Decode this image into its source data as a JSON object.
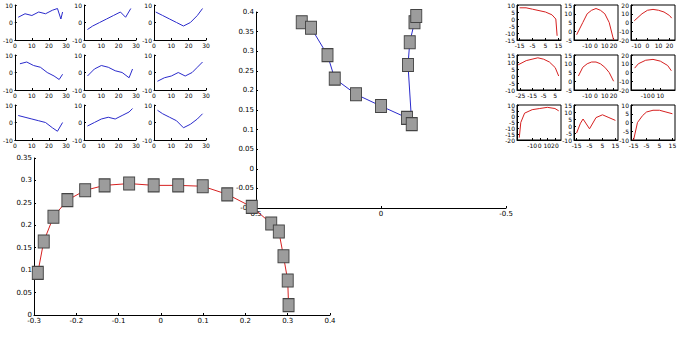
{
  "chart_data": [
    {
      "type": "line",
      "color": "#2b2bcc",
      "x": [
        2,
        6,
        10,
        14,
        18,
        22,
        25,
        27,
        28
      ],
      "values": [
        3,
        5,
        4,
        6,
        5,
        7,
        8,
        2,
        6
      ],
      "xlim": [
        0,
        30
      ],
      "ylim": [
        -10,
        10
      ],
      "xticks": [
        0,
        10,
        20,
        30
      ],
      "yticks": [
        -10,
        0,
        10
      ],
      "grid": false
    },
    {
      "type": "line",
      "color": "#2b2bcc",
      "x": [
        2,
        5,
        9,
        13,
        17,
        21,
        24,
        27
      ],
      "values": [
        -4,
        -2,
        0,
        2,
        4,
        6,
        3,
        8
      ],
      "xlim": [
        0,
        30
      ],
      "ylim": [
        -10,
        10
      ],
      "xticks": [
        0,
        10,
        20,
        30
      ],
      "yticks": [
        -10,
        0,
        10
      ],
      "grid": false
    },
    {
      "type": "line",
      "color": "#2b2bcc",
      "x": [
        1,
        5,
        9,
        13,
        17,
        21,
        25,
        28
      ],
      "values": [
        6,
        4,
        2,
        0,
        -2,
        0,
        4,
        8
      ],
      "xlim": [
        0,
        30
      ],
      "ylim": [
        -10,
        10
      ],
      "xticks": [
        0,
        10,
        20,
        30
      ],
      "yticks": [
        -10,
        0,
        10
      ],
      "grid": false
    },
    {
      "type": "line",
      "color": "#2b2bcc",
      "x": [
        3,
        7,
        11,
        15,
        19,
        23,
        26,
        28
      ],
      "values": [
        5,
        6,
        4,
        3,
        0,
        -2,
        -4,
        -1
      ],
      "xlim": [
        0,
        30
      ],
      "ylim": [
        -10,
        10
      ],
      "xticks": [
        0,
        10,
        20,
        30
      ],
      "yticks": [
        -10,
        0,
        10
      ],
      "grid": false
    },
    {
      "type": "line",
      "color": "#2b2bcc",
      "x": [
        2,
        6,
        10,
        14,
        18,
        22,
        26,
        28
      ],
      "values": [
        -2,
        2,
        4,
        3,
        1,
        0,
        -3,
        2
      ],
      "xlim": [
        0,
        30
      ],
      "ylim": [
        -10,
        10
      ],
      "xticks": [
        0,
        10,
        20,
        30
      ],
      "yticks": [
        -10,
        0,
        10
      ],
      "grid": false
    },
    {
      "type": "line",
      "color": "#2b2bcc",
      "x": [
        2,
        6,
        10,
        14,
        18,
        22,
        25,
        28
      ],
      "values": [
        -5,
        -3,
        -2,
        0,
        -2,
        0,
        3,
        6
      ],
      "xlim": [
        0,
        30
      ],
      "ylim": [
        -10,
        10
      ],
      "xticks": [
        0,
        10,
        20,
        30
      ],
      "yticks": [
        -10,
        0,
        10
      ],
      "grid": false
    },
    {
      "type": "line",
      "color": "#2b2bcc",
      "x": [
        2,
        6,
        10,
        14,
        18,
        22,
        25,
        28
      ],
      "values": [
        4,
        3,
        2,
        1,
        0,
        -3,
        -5,
        0
      ],
      "xlim": [
        0,
        30
      ],
      "ylim": [
        -10,
        10
      ],
      "xticks": [
        0,
        10,
        20,
        30
      ],
      "yticks": [
        -10,
        0,
        10
      ],
      "grid": false
    },
    {
      "type": "line",
      "color": "#2b2bcc",
      "x": [
        2,
        6,
        10,
        14,
        18,
        22,
        26,
        28
      ],
      "values": [
        -2,
        0,
        2,
        3,
        2,
        4,
        6,
        8
      ],
      "xlim": [
        0,
        30
      ],
      "ylim": [
        -10,
        10
      ],
      "xticks": [
        0,
        10,
        20,
        30
      ],
      "yticks": [
        -10,
        0,
        10
      ],
      "grid": false
    },
    {
      "type": "line",
      "color": "#2b2bcc",
      "x": [
        2,
        5,
        9,
        13,
        17,
        21,
        25,
        28
      ],
      "values": [
        7,
        5,
        3,
        1,
        -3,
        -1,
        2,
        5
      ],
      "xlim": [
        0,
        30
      ],
      "ylim": [
        -10,
        10
      ],
      "xticks": [
        0,
        10,
        20,
        30
      ],
      "yticks": [
        -10,
        0,
        10
      ],
      "grid": false
    },
    {
      "type": "line",
      "color": "#2b2bcc",
      "marker": "square",
      "x": [
        0.317,
        0.28,
        0.214,
        0.185,
        0.1,
        0,
        -0.104,
        -0.123,
        -0.108,
        -0.115,
        -0.134,
        -0.141
      ],
      "values": [
        0.374,
        0.36,
        0.29,
        0.23,
        0.19,
        0.16,
        0.13,
        0.114,
        0.265,
        0.323,
        0.374,
        0.39
      ],
      "xlim": [
        0.5,
        -0.5
      ],
      "ylim": [
        -0.1,
        0.4
      ],
      "xticks": [
        0.5,
        0,
        -0.5
      ],
      "yticks": [
        -0.1,
        -0.05,
        0,
        0.05,
        0.1,
        0.15,
        0.2,
        0.25,
        0.3,
        0.35,
        0.4
      ],
      "grid": false
    },
    {
      "type": "line",
      "color": "#d62020",
      "x": [
        -15,
        -10,
        -5,
        0,
        5,
        10,
        13,
        14
      ],
      "values": [
        8,
        8,
        7,
        6,
        5,
        3,
        0,
        -12
      ],
      "xlim": [
        -17,
        17
      ],
      "ylim": [
        -15,
        10
      ],
      "xticks": [
        -15,
        -5,
        5,
        15
      ],
      "yticks": [
        -15,
        -10,
        -5,
        0,
        5,
        10
      ],
      "grid": false
    },
    {
      "type": "line",
      "color": "#d62020",
      "x": [
        -22,
        -15,
        -10,
        -5,
        0,
        5,
        10,
        15,
        20
      ],
      "values": [
        -2,
        5,
        10,
        12,
        13,
        12,
        10,
        5,
        -5
      ],
      "xlim": [
        -25,
        25
      ],
      "ylim": [
        -5,
        15
      ],
      "xticks": [
        -20,
        -10,
        0,
        10,
        20
      ],
      "yticks": [
        -5,
        0,
        5,
        10,
        15
      ],
      "grid": false
    },
    {
      "type": "line",
      "color": "#d62020",
      "x": [
        -12,
        -5,
        0,
        5,
        10,
        15,
        20,
        22
      ],
      "values": [
        2,
        10,
        14,
        15,
        14,
        12,
        8,
        5
      ],
      "xlim": [
        -15,
        25
      ],
      "ylim": [
        -20,
        20
      ],
      "xticks": [
        -10,
        0,
        10,
        20
      ],
      "yticks": [
        -20,
        -10,
        0,
        10,
        20
      ],
      "grid": false
    },
    {
      "type": "line",
      "color": "#d62020",
      "x": [
        -27,
        -20,
        -15,
        -10,
        -5,
        0,
        5,
        8
      ],
      "values": [
        8,
        11,
        12,
        13,
        12,
        10,
        6,
        0
      ],
      "xlim": [
        -28,
        10
      ],
      "ylim": [
        -10,
        15
      ],
      "xticks": [
        -25,
        -15,
        -5,
        5
      ],
      "yticks": [
        -10,
        -5,
        0,
        5,
        10,
        15
      ],
      "grid": false
    },
    {
      "type": "line",
      "color": "#d62020",
      "x": [
        -20,
        -15,
        -10,
        -5,
        0,
        5,
        10,
        15,
        20
      ],
      "values": [
        3,
        8,
        10,
        11,
        11,
        10,
        8,
        5,
        0
      ],
      "xlim": [
        -25,
        25
      ],
      "ylim": [
        -5,
        15
      ],
      "xticks": [
        -20,
        -10,
        0,
        10,
        20
      ],
      "yticks": [
        -5,
        0,
        5,
        10,
        15
      ],
      "grid": false
    },
    {
      "type": "line",
      "color": "#d62020",
      "x": [
        -25,
        -20,
        -10,
        0,
        10,
        20,
        25
      ],
      "values": [
        5,
        10,
        14,
        15,
        13,
        8,
        2
      ],
      "xlim": [
        -30,
        30
      ],
      "ylim": [
        -20,
        20
      ],
      "xticks": [
        -20,
        -10,
        0,
        10,
        20
      ],
      "yticks": [
        -20,
        -10,
        0,
        10,
        20
      ],
      "grid": false
    },
    {
      "type": "line",
      "color": "#d62020",
      "x": [
        -27,
        -25,
        -20,
        -10,
        0,
        10,
        20,
        25
      ],
      "values": [
        -18,
        -5,
        3,
        6,
        7,
        8,
        7,
        5
      ],
      "xlim": [
        -30,
        28
      ],
      "ylim": [
        -20,
        10
      ],
      "xticks": [
        -20,
        -10,
        0,
        10,
        20
      ],
      "yticks": [
        -20,
        -15,
        -10,
        -5,
        0,
        5,
        10
      ],
      "grid": false
    },
    {
      "type": "line",
      "color": "#d62020",
      "x": [
        -15,
        -12,
        -10,
        -5,
        0,
        5,
        10,
        15
      ],
      "values": [
        -5,
        2,
        5,
        -2,
        6,
        8,
        6,
        4
      ],
      "xlim": [
        -17,
        17
      ],
      "ylim": [
        -10,
        15
      ],
      "xticks": [
        -15,
        -5,
        5,
        15
      ],
      "yticks": [
        -10,
        -5,
        0,
        5,
        10,
        15
      ],
      "grid": false
    },
    {
      "type": "line",
      "color": "#d62020",
      "x": [
        -15,
        -12,
        -8,
        -5,
        0,
        5,
        10,
        15
      ],
      "values": [
        -10,
        0,
        4,
        6,
        7,
        7,
        6,
        5
      ],
      "xlim": [
        -17,
        17
      ],
      "ylim": [
        -10,
        10
      ],
      "xticks": [
        -15,
        -5,
        5,
        15
      ],
      "yticks": [
        -10,
        -5,
        0,
        5,
        10
      ],
      "grid": false
    },
    {
      "type": "line",
      "color": "#d62020",
      "marker": "square",
      "x": [
        -0.291,
        -0.277,
        -0.254,
        -0.221,
        -0.179,
        -0.133,
        -0.075,
        -0.017,
        0.041,
        0.099,
        0.157,
        0.215,
        0.261,
        0.279,
        0.29,
        0.3,
        0.302
      ],
      "values": [
        0.094,
        0.164,
        0.219,
        0.256,
        0.278,
        0.289,
        0.293,
        0.289,
        0.289,
        0.287,
        0.269,
        0.241,
        0.204,
        0.186,
        0.131,
        0.077,
        0.022
      ],
      "xlim": [
        -0.3,
        0.4
      ],
      "ylim": [
        0,
        0.35
      ],
      "xticks": [
        -0.3,
        -0.2,
        -0.1,
        0,
        0.1,
        0.2,
        0.3,
        0.4
      ],
      "yticks": [
        0,
        0.05,
        0.1,
        0.15,
        0.2,
        0.25,
        0.3,
        0.35
      ],
      "grid": false
    }
  ]
}
